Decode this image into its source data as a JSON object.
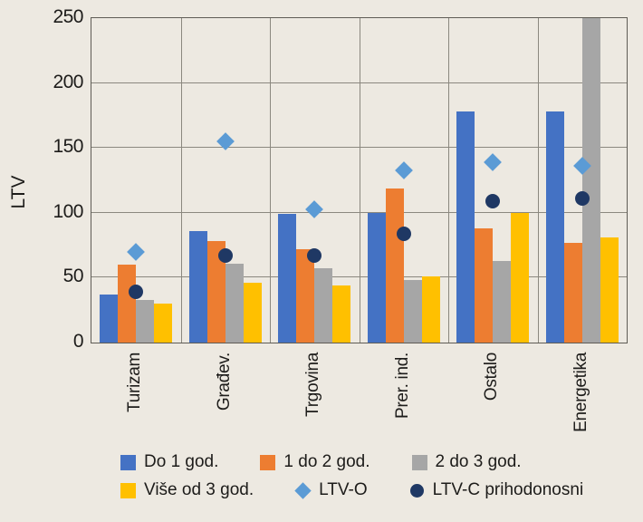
{
  "chart_data": {
    "type": "bar",
    "title": "",
    "ylabel": "LTV",
    "xlabel": "",
    "ylim": [
      0,
      250
    ],
    "yticks": [
      0,
      50,
      100,
      150,
      200,
      250
    ],
    "grid": true,
    "legend_position": "bottom",
    "categories": [
      "Turizam",
      "Građev.",
      "Trgovina",
      "Prer. ind.",
      "Ostalo",
      "Energetika"
    ],
    "series": [
      {
        "name": "Do 1 god.",
        "kind": "bar",
        "color": "#4472C4",
        "values": [
          37,
          86,
          99,
          100,
          178,
          178
        ]
      },
      {
        "name": "1 do 2 god.",
        "kind": "bar",
        "color": "#ED7D31",
        "values": [
          60,
          78,
          72,
          119,
          88,
          77
        ]
      },
      {
        "name": "2 do 3 god.",
        "kind": "bar",
        "color": "#A6A6A6",
        "values": [
          33,
          61,
          57,
          48,
          63,
          250
        ]
      },
      {
        "name": "Više od 3 god.",
        "kind": "bar",
        "color": "#FFC000",
        "values": [
          30,
          46,
          44,
          51,
          100,
          81
        ]
      },
      {
        "name": "LTV-O",
        "kind": "diamond-marker",
        "color": "#5B9BD5",
        "values": [
          70,
          155,
          103,
          133,
          139,
          136
        ]
      },
      {
        "name": "LTV-C prihodonosni",
        "kind": "circle-marker",
        "color": "#1F3864",
        "values": [
          39,
          67,
          67,
          84,
          109,
          111
        ]
      }
    ],
    "note": "The '2 do 3 god.' bar for Energetika exceeds the axis maximum and is clipped at 250.",
    "colors": {
      "background": "#EDE9E1",
      "plot_border": "#5f5c55",
      "gridline": "#8b887f",
      "text": "#1d1c1a"
    },
    "legend_rows": [
      [
        "Do 1 god.",
        "1 do 2 god.",
        "2 do 3 god."
      ],
      [
        "Više od 3 god.",
        "LTV-O",
        "LTV-C prihodonosni"
      ]
    ]
  }
}
